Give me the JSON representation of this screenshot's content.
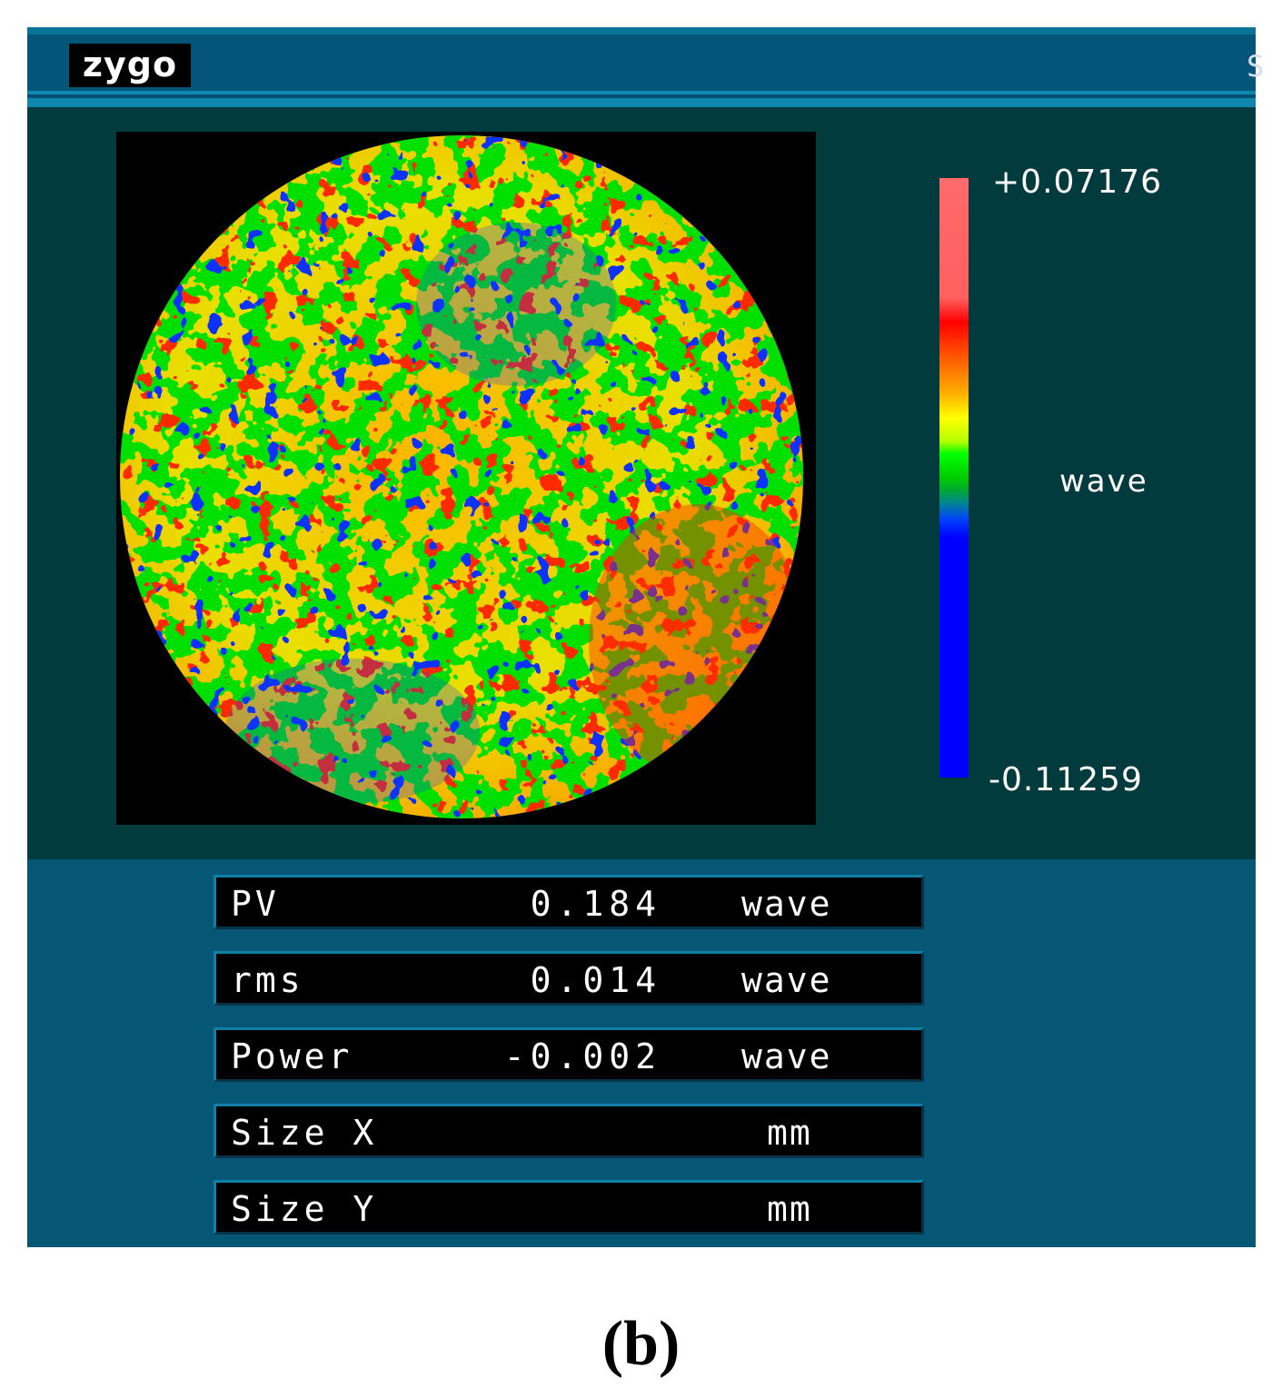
{
  "app": {
    "logo_text": "zygo",
    "title_edge_text": "S"
  },
  "display": {
    "colorbar": {
      "max_label": "+0.07176",
      "unit_label": "wave",
      "min_label": "-0.11259"
    },
    "map": {
      "aperture": "circular",
      "colormap": [
        "#0000ff",
        "#00ff00",
        "#ffff00",
        "#ff8000",
        "#ff0000",
        "#ff6a6a"
      ]
    }
  },
  "results": [
    {
      "label": "PV",
      "value": "0.184",
      "unit": "wave"
    },
    {
      "label": "rms",
      "value": "0.014",
      "unit": "wave"
    },
    {
      "label": "Power",
      "value": "-0.002",
      "unit": "wave"
    },
    {
      "label": "Size X",
      "value": "",
      "unit": "mm"
    },
    {
      "label": "Size Y",
      "value": "",
      "unit": "mm"
    }
  ],
  "caption": "(b)"
}
